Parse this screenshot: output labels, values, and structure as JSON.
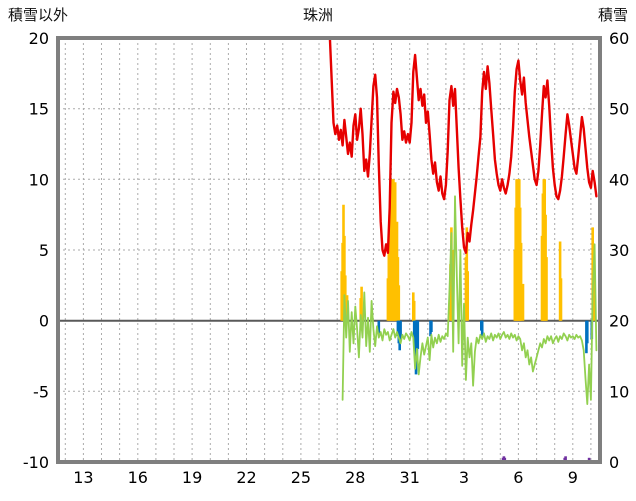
{
  "header": {
    "left_axis_title": "積雪以外",
    "station_title": "珠洲",
    "right_axis_title": "積雪"
  },
  "chart_data": {
    "type": "line",
    "title": "珠洲",
    "left_axis": {
      "label": "積雪以外",
      "min": -10,
      "max": 20,
      "ticks": [
        20,
        15,
        10,
        5,
        0,
        -5,
        -10
      ]
    },
    "right_axis": {
      "label": "積雪",
      "min": 0,
      "max": 60,
      "ticks": [
        60,
        50,
        40,
        30,
        20,
        10,
        0
      ]
    },
    "x_axis": {
      "min": 11.6,
      "max": 41.5,
      "grid_step": 1,
      "tick_days": [
        13,
        16,
        19,
        22,
        25,
        28,
        31,
        34,
        37,
        40
      ],
      "tick_labels": [
        "13",
        "16",
        "19",
        "22",
        "25",
        "28",
        "31",
        "3",
        "6",
        "9"
      ]
    },
    "style": {
      "frame_color": "#7f7f7f",
      "grid_color": "#ababab",
      "zero_line_color": "#595959",
      "background": "#ffffff",
      "text_color": "#000000"
    },
    "series": [
      {
        "name": "orange-bars",
        "kind": "bars",
        "color": "#ffc000",
        "base": 0,
        "width": 2.6,
        "points": [
          [
            27.25,
            3.5
          ],
          [
            27.3,
            5.5
          ],
          [
            27.35,
            8.2
          ],
          [
            27.4,
            6.0
          ],
          [
            27.45,
            3.2
          ],
          [
            27.55,
            1.8
          ],
          [
            28.3,
            1.6
          ],
          [
            28.35,
            2.4
          ],
          [
            29.8,
            3.0
          ],
          [
            29.85,
            5.5
          ],
          [
            29.9,
            7.5
          ],
          [
            29.95,
            9.5
          ],
          [
            30.0,
            10.0
          ],
          [
            30.05,
            10.0
          ],
          [
            30.1,
            10.0
          ],
          [
            30.15,
            9.4
          ],
          [
            30.2,
            9.8
          ],
          [
            30.3,
            7.0
          ],
          [
            30.35,
            4.5
          ],
          [
            30.4,
            2.5
          ],
          [
            31.2,
            2.0
          ],
          [
            31.25,
            1.4
          ],
          [
            33.25,
            4.0
          ],
          [
            33.3,
            6.6
          ],
          [
            33.35,
            5.0
          ],
          [
            33.4,
            2.8
          ],
          [
            34.1,
            4.5
          ],
          [
            34.15,
            6.6
          ],
          [
            34.2,
            3.5
          ],
          [
            36.8,
            5.0
          ],
          [
            36.85,
            8.0
          ],
          [
            36.9,
            10.0
          ],
          [
            36.95,
            10.0
          ],
          [
            37.0,
            9.4
          ],
          [
            37.05,
            10.0
          ],
          [
            37.1,
            8.0
          ],
          [
            37.15,
            5.5
          ],
          [
            37.25,
            2.6
          ],
          [
            38.3,
            6.0
          ],
          [
            38.35,
            9.0
          ],
          [
            38.4,
            10.0
          ],
          [
            38.45,
            10.0
          ],
          [
            38.5,
            7.5
          ],
          [
            38.55,
            4.5
          ],
          [
            39.3,
            5.6
          ],
          [
            39.35,
            3.0
          ],
          [
            41.1,
            6.6
          ],
          [
            41.15,
            3.8
          ]
        ]
      },
      {
        "name": "blue-bars",
        "kind": "bars",
        "color": "#0070c0",
        "base": 0,
        "width": 2.6,
        "points": [
          [
            29.3,
            -0.9
          ],
          [
            30.35,
            -1.1
          ],
          [
            30.4,
            -1.6
          ],
          [
            30.45,
            -2.1
          ],
          [
            30.5,
            -1.3
          ],
          [
            31.25,
            -1.4
          ],
          [
            31.3,
            -2.6
          ],
          [
            31.35,
            -3.8
          ],
          [
            31.4,
            -3.0
          ],
          [
            31.45,
            -2.0
          ],
          [
            32.15,
            -1.1
          ],
          [
            32.2,
            -0.8
          ],
          [
            34.95,
            -0.7
          ],
          [
            35.0,
            -1.1
          ],
          [
            40.75,
            -2.3
          ],
          [
            40.8,
            -1.6
          ],
          [
            41.05,
            -1.3
          ]
        ]
      },
      {
        "name": "purple-ticks",
        "kind": "bars",
        "color": "#7030a0",
        "base": -10,
        "width": 2.6,
        "points": [
          [
            36.15,
            -9.7
          ],
          [
            36.2,
            -9.6
          ],
          [
            36.25,
            -9.7
          ],
          [
            39.55,
            -9.7
          ],
          [
            39.6,
            -9.6
          ],
          [
            40.9,
            -9.7
          ]
        ]
      },
      {
        "name": "green-line",
        "kind": "line",
        "color": "#92d050",
        "width": 1.8,
        "x0": 27.3,
        "dx": 0.1,
        "values": [
          -5.6,
          1.8,
          -1.2,
          1.4,
          -2.2,
          0.6,
          -1.6,
          1,
          -0.6,
          -2.6,
          0.4,
          -1.2,
          2,
          -1.8,
          0.2,
          -2.2,
          1.4,
          -0.6,
          -1.8,
          -0.4,
          -1.2,
          -0.8,
          -1.4,
          -0.6,
          -1,
          -0.8,
          -1.4,
          -1,
          -0.6,
          -1.2,
          -0.8,
          -1.2,
          -1.6,
          -1,
          -1.3,
          -0.9,
          -1.1,
          -1.4,
          -0.8,
          -1.2,
          -3.4,
          -2,
          -3.8,
          -2.6,
          -1.6,
          -2.4,
          -1.8,
          -1.2,
          -2.8,
          -1,
          -1.9,
          -1.2,
          -1.6,
          -1,
          -1.5,
          -1.1,
          -1.3,
          -0.9,
          -1.1,
          2.2,
          6.2,
          -2.2,
          8.8,
          3.2,
          -1.6,
          5,
          -3.2,
          1.2,
          -4.2,
          -1.2,
          -2.6,
          -1.6,
          -4.6,
          -2.2,
          -1.2,
          -1.6,
          -1,
          -1.3,
          -0.9,
          -1.5,
          -1.1,
          -1.3,
          -0.9,
          -1.4,
          -1,
          -1.2,
          -0.9,
          -1.3,
          -1,
          -0.8,
          -1.2,
          -1,
          -1.3,
          -0.9,
          -1.2,
          -1,
          -1.4,
          -1.1,
          -1.3,
          -2.1,
          -1.6,
          -2.6,
          -2.1,
          -3.1,
          -2.6,
          -3.6,
          -3.1,
          -2.6,
          -2.1,
          -1.6,
          -1.9,
          -1.3,
          -1.6,
          -1.1,
          -1.4,
          -1.1,
          -1.6,
          -1.3,
          -1.1,
          -1.5,
          -1.1,
          -1.3,
          -0.9,
          -1.1,
          -1.4,
          -1,
          -1.2,
          -1.1,
          -1.3,
          -1,
          -1.2,
          -1.1,
          -1.4,
          -2.1,
          -4.1,
          -5.9,
          -3.1,
          -5.6,
          1.9,
          5.4,
          -2.1
        ]
      },
      {
        "name": "red-line",
        "kind": "line",
        "color": "#e60000",
        "width": 2.4,
        "x0": 26.6,
        "dx": 0.1,
        "values": [
          20,
          17,
          14,
          13.2,
          13.8,
          12.8,
          13.5,
          12.4,
          14.2,
          13,
          11.8,
          12.6,
          11.6,
          13.8,
          14.6,
          12.8,
          13.6,
          15,
          13.2,
          10.6,
          11.4,
          10.2,
          11.8,
          14.2,
          16.6,
          17.4,
          15.8,
          11,
          7,
          5,
          4.6,
          5.4,
          4.8,
          8,
          14,
          16.2,
          15.4,
          16.4,
          15.8,
          14.6,
          12.8,
          13.4,
          12.6,
          13.2,
          12.6,
          14,
          17.6,
          18.8,
          17.2,
          15.6,
          16.4,
          15.2,
          16,
          14,
          14.8,
          13.2,
          11.4,
          10.4,
          11.2,
          9.8,
          9.2,
          10.2,
          9,
          8.6,
          9.6,
          12,
          15.6,
          16.6,
          15.2,
          16.4,
          13.6,
          10.8,
          8.6,
          6.6,
          5.2,
          4.8,
          6.2,
          5.6,
          6.8,
          7.8,
          9,
          10.2,
          11.6,
          13,
          16.2,
          17.6,
          16.4,
          18,
          16.8,
          15,
          13.2,
          11.4,
          10.4,
          9.6,
          9.2,
          10,
          9.4,
          9,
          9.6,
          10.4,
          11.6,
          13.6,
          16.2,
          17.8,
          18.4,
          17,
          16,
          17.2,
          15.4,
          14.2,
          13,
          12,
          11,
          10,
          9.6,
          10.6,
          12.4,
          14.6,
          16.6,
          15.8,
          17,
          15.2,
          12.8,
          10.8,
          9.6,
          8.8,
          8.6,
          9.2,
          10.2,
          11.6,
          13.2,
          14.6,
          13.8,
          12.8,
          11.8,
          10.8,
          10.4,
          11.6,
          13,
          14.4,
          13.6,
          12.2,
          10.8,
          9.8,
          9.4,
          10.6,
          9.8,
          8.8
        ]
      }
    ]
  }
}
